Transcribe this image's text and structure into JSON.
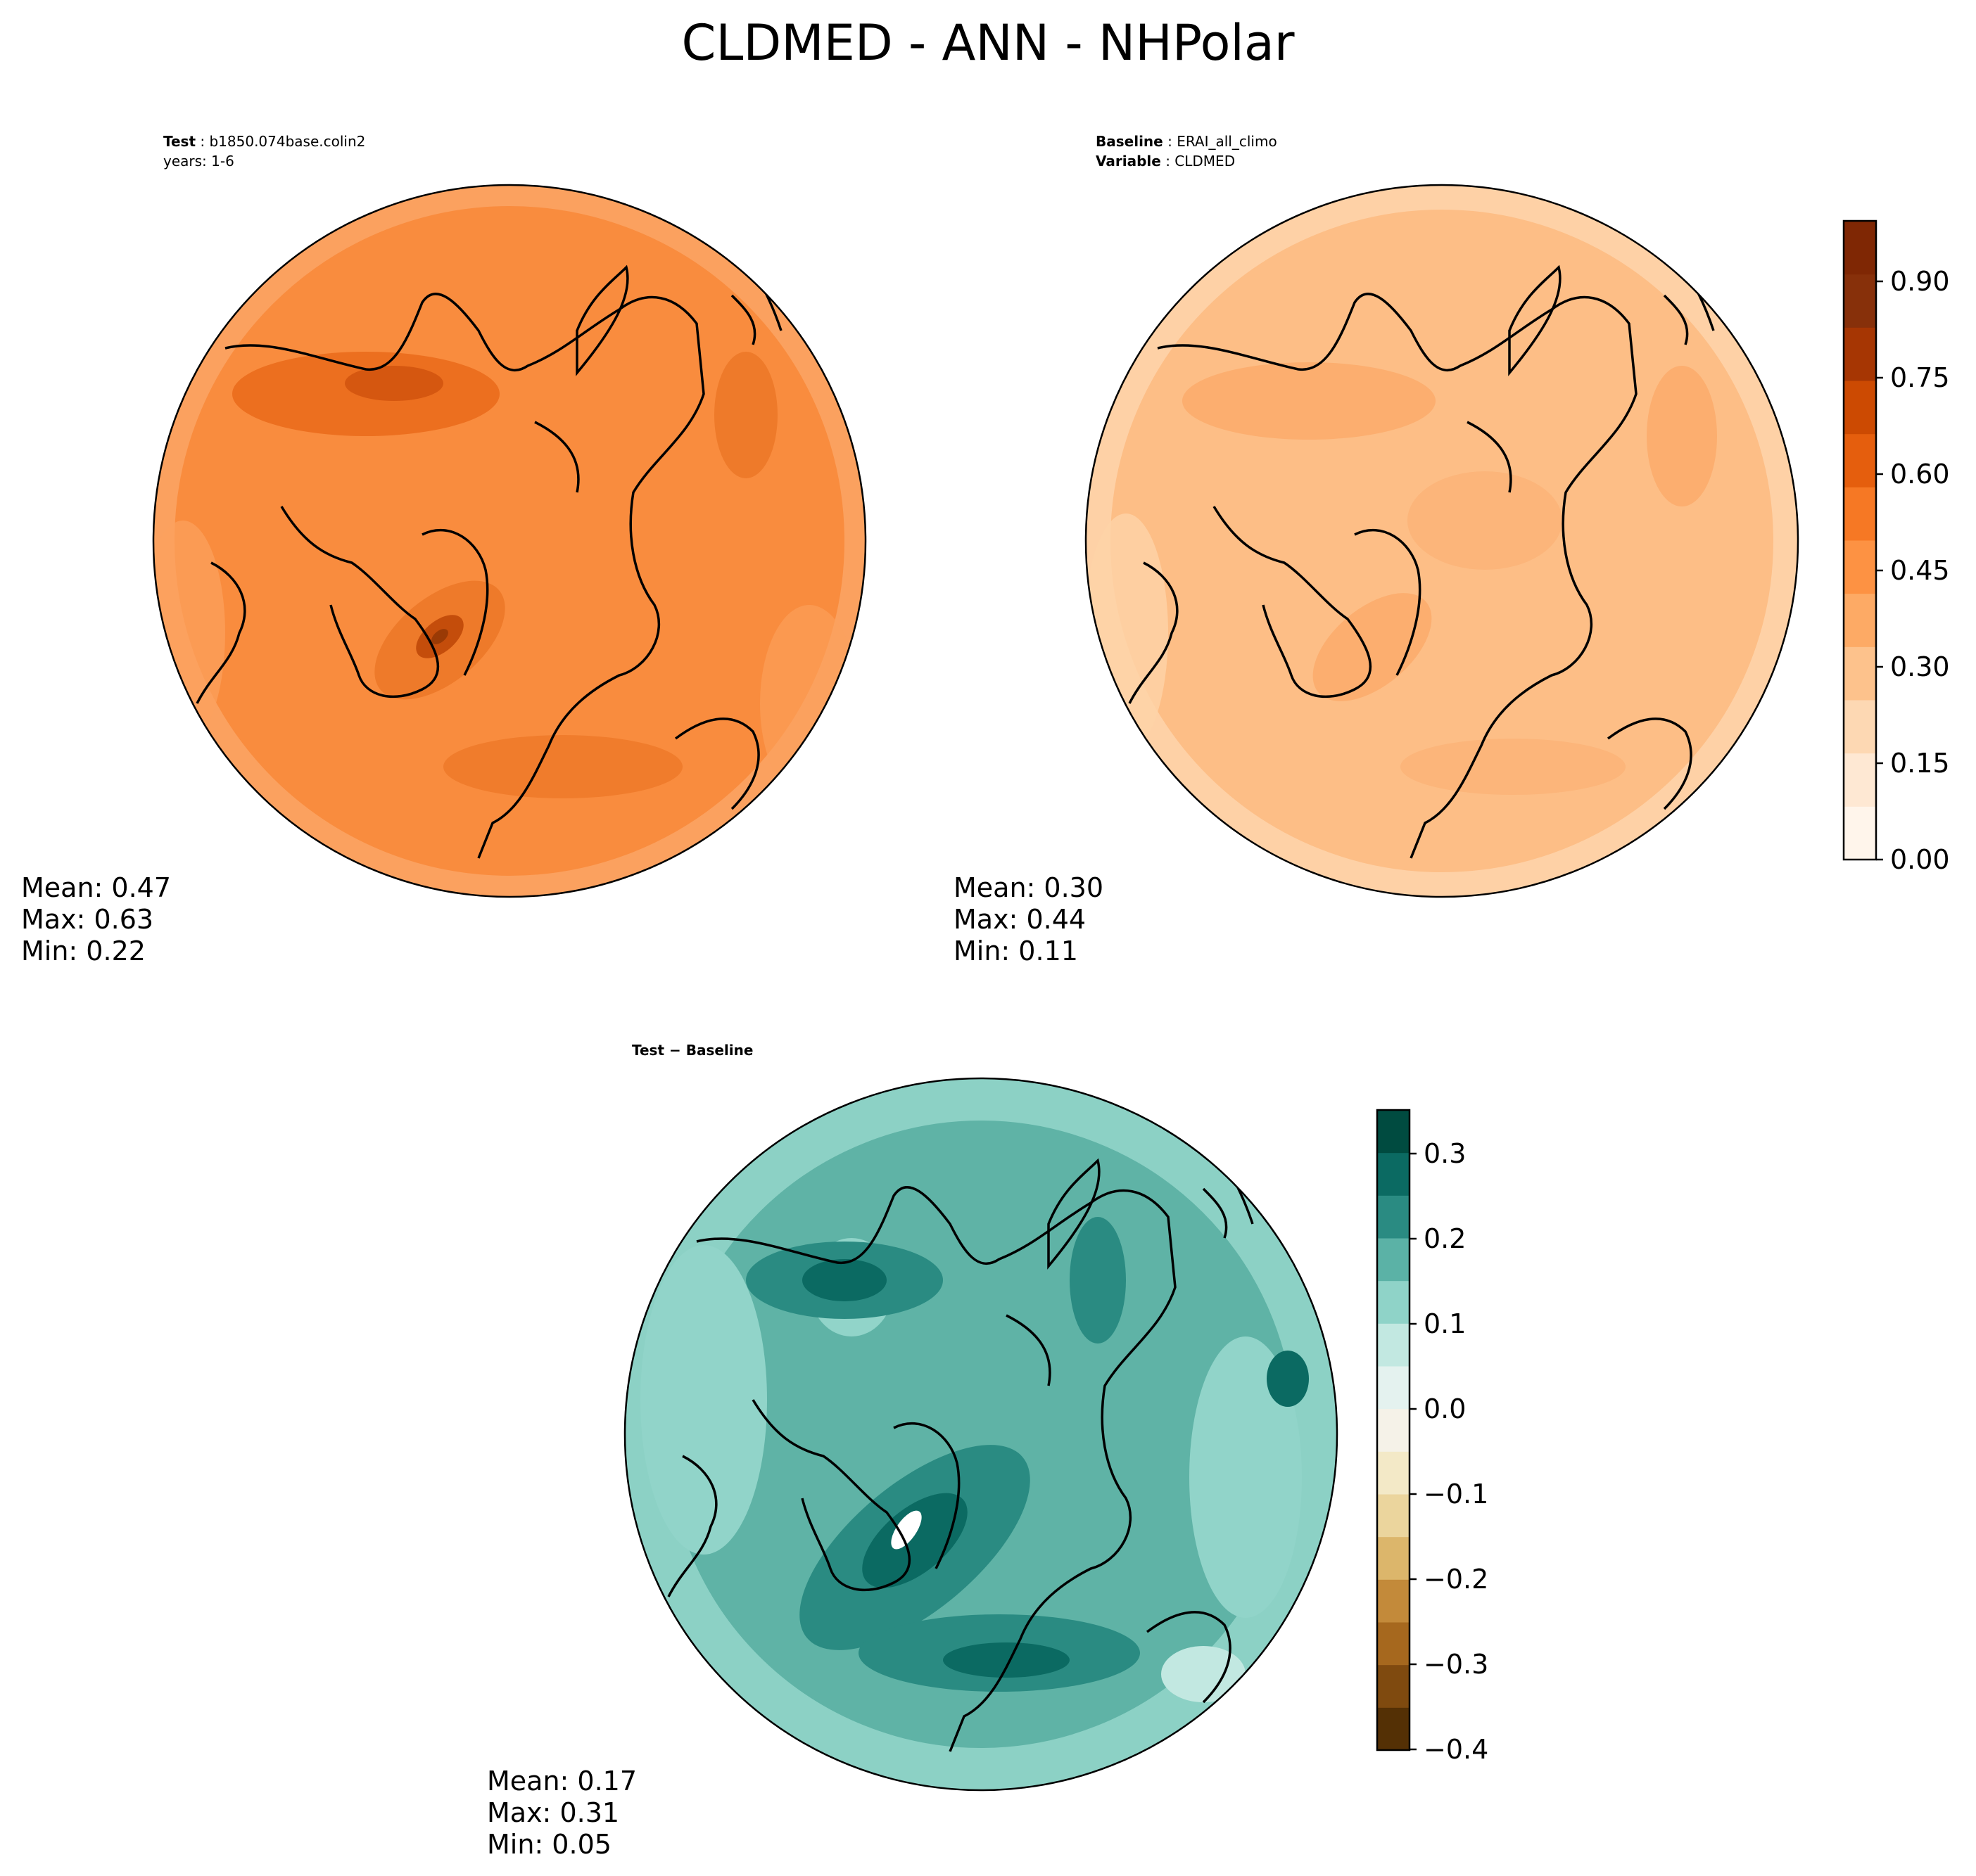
{
  "title": "CLDMED - ANN - NHPolar",
  "panels": {
    "test": {
      "label_key": "Test",
      "label_value": "b1850.074base.colin2",
      "line2": "years: 1-6",
      "mean": "Mean:  0.47",
      "max": "Max:  0.63",
      "min": "Min:  0.22",
      "fill_color": "#f98c3e"
    },
    "baseline": {
      "label_key": "Baseline",
      "label_value": "ERAI_all_climo",
      "line2_key": "Variable",
      "line2_value": "CLDMED",
      "mean": "Mean:  0.30",
      "max": "Max:  0.44",
      "min": "Min:  0.11",
      "fill_color": "#fdbe86"
    },
    "diff": {
      "label": "Test − Baseline",
      "mean": "Mean:  0.17",
      "max": "Max:  0.31",
      "min": "Min:  0.05",
      "fill_color": "#5fb3a6"
    }
  },
  "colorbar_top": {
    "colormap": "Oranges",
    "colors": [
      "#fff5eb",
      "#fee8d3",
      "#fdd8b3",
      "#fdc28c",
      "#fdaa65",
      "#fd9243",
      "#f67824",
      "#e55e0d",
      "#cc4a02",
      "#a63603",
      "#87300a",
      "#7f2704"
    ],
    "ticks": [
      "0.00",
      "0.15",
      "0.30",
      "0.45",
      "0.60",
      "0.75",
      "0.90"
    ]
  },
  "colorbar_diff": {
    "colormap": "BrBG",
    "colors": [
      "#543005",
      "#7f4a0f",
      "#a6681e",
      "#c38a3a",
      "#dcb66b",
      "#ebd59d",
      "#f3e9c7",
      "#f5f2e8",
      "#e4f2ef",
      "#c2e8e1",
      "#8fd3c8",
      "#5bb2a6",
      "#2a8b82",
      "#0b6a62",
      "#004b40"
    ],
    "ticks": [
      "0.3",
      "0.2",
      "0.1",
      "0.0",
      "−0.1",
      "−0.2",
      "−0.3",
      "−0.4"
    ]
  }
}
